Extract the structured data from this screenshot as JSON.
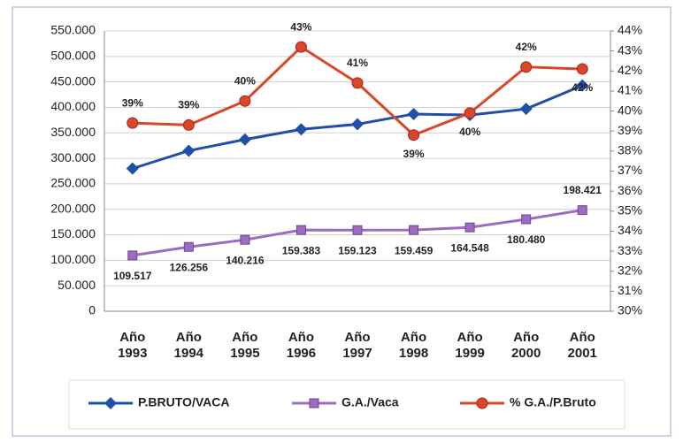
{
  "chart_data": {
    "type": "line",
    "categories": [
      "Año 1993",
      "Año 1994",
      "Año 1995",
      "Año 1996",
      "Año 1997",
      "Año 1998",
      "Año 1999",
      "Año 2000",
      "Año 2001"
    ],
    "series": [
      {
        "name": "P.BRUTO/VACA",
        "color": "#1f4fa8",
        "marker": "diamond",
        "axis": "y",
        "values": [
          280000,
          315000,
          337000,
          357000,
          367000,
          387000,
          385000,
          397000,
          443000
        ]
      },
      {
        "name": "G.A./Vaca",
        "color": "#9d6cc0",
        "marker": "square",
        "axis": "y",
        "values": [
          109517,
          126256,
          140216,
          159383,
          159123,
          159459,
          164548,
          180480,
          198421
        ],
        "value_labels": [
          "109.517",
          "126.256",
          "140.216",
          "159.383",
          "159.123",
          "159.459",
          "164.548",
          "180.480",
          "198.421"
        ]
      },
      {
        "name": "% G.A./P.Bruto",
        "color": "#d9472b",
        "marker": "circle",
        "axis": "y2",
        "values": [
          39.4,
          39.3,
          40.5,
          43.2,
          41.4,
          38.8,
          39.9,
          42.2,
          42.1
        ],
        "value_labels": [
          "39%",
          "39%",
          "40%",
          "43%",
          "41%",
          "39%",
          "40%",
          "42%",
          "42%"
        ]
      }
    ],
    "ylim": [
      0,
      550000
    ],
    "yticks": [
      {
        "value": 0,
        "label": "0"
      },
      {
        "value": 50000,
        "label": "50.000"
      },
      {
        "value": 100000,
        "label": "100.000"
      },
      {
        "value": 150000,
        "label": "150.000"
      },
      {
        "value": 200000,
        "label": "200.000"
      },
      {
        "value": 250000,
        "label": "250.000"
      },
      {
        "value": 300000,
        "label": "300.000"
      },
      {
        "value": 350000,
        "label": "350.000"
      },
      {
        "value": 400000,
        "label": "400.000"
      },
      {
        "value": 450000,
        "label": "450.000"
      },
      {
        "value": 500000,
        "label": "500.000"
      },
      {
        "value": 550000,
        "label": "550.000"
      }
    ],
    "y2lim": [
      30,
      44
    ],
    "y2ticks": [
      {
        "value": 30,
        "label": "30%"
      },
      {
        "value": 31,
        "label": "31%"
      },
      {
        "value": 32,
        "label": "32%"
      },
      {
        "value": 33,
        "label": "33%"
      },
      {
        "value": 34,
        "label": "34%"
      },
      {
        "value": 35,
        "label": "35%"
      },
      {
        "value": 36,
        "label": "36%"
      },
      {
        "value": 37,
        "label": "37%"
      },
      {
        "value": 38,
        "label": "38%"
      },
      {
        "value": 39,
        "label": "39%"
      },
      {
        "value": 40,
        "label": "40%"
      },
      {
        "value": 41,
        "label": "41%"
      },
      {
        "value": 42,
        "label": "42%"
      },
      {
        "value": 43,
        "label": "43%"
      },
      {
        "value": 44,
        "label": "44%"
      }
    ],
    "grid": true,
    "legend": "bottom"
  }
}
